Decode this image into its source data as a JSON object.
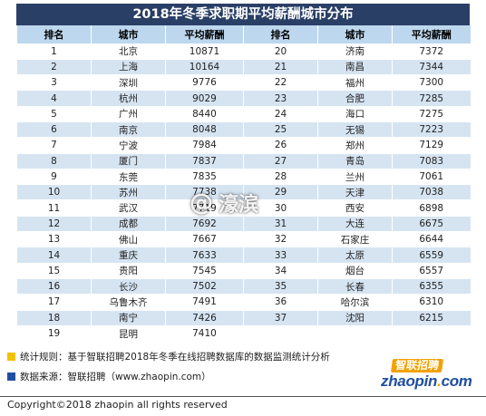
{
  "title": "2018年冬季求职期平均薪酬城市分布",
  "headers": [
    "排名",
    "城市",
    "平均薪酬",
    "排名",
    "城市",
    "平均薪酬"
  ],
  "left": [
    {
      "rank": "1",
      "city": "北京",
      "salary": "10871"
    },
    {
      "rank": "2",
      "city": "上海",
      "salary": "10164"
    },
    {
      "rank": "3",
      "city": "深圳",
      "salary": "9776"
    },
    {
      "rank": "4",
      "city": "杭州",
      "salary": "9029"
    },
    {
      "rank": "5",
      "city": "广州",
      "salary": "8440"
    },
    {
      "rank": "6",
      "city": "南京",
      "salary": "8048"
    },
    {
      "rank": "7",
      "city": "宁波",
      "salary": "7984"
    },
    {
      "rank": "8",
      "city": "厦门",
      "salary": "7837"
    },
    {
      "rank": "9",
      "city": "东莞",
      "salary": "7835"
    },
    {
      "rank": "10",
      "city": "苏州",
      "salary": "7738"
    },
    {
      "rank": "11",
      "city": "武汉",
      "salary": "7719"
    },
    {
      "rank": "12",
      "city": "成都",
      "salary": "7692"
    },
    {
      "rank": "13",
      "city": "佛山",
      "salary": "7667"
    },
    {
      "rank": "14",
      "city": "重庆",
      "salary": "7633"
    },
    {
      "rank": "15",
      "city": "贵阳",
      "salary": "7545"
    },
    {
      "rank": "16",
      "city": "长沙",
      "salary": "7502"
    },
    {
      "rank": "17",
      "city": "乌鲁木齐",
      "salary": "7491"
    },
    {
      "rank": "18",
      "city": "南宁",
      "salary": "7426"
    },
    {
      "rank": "19",
      "city": "昆明",
      "salary": "7410"
    }
  ],
  "right": [
    {
      "rank": "20",
      "city": "济南",
      "salary": "7372"
    },
    {
      "rank": "21",
      "city": "南昌",
      "salary": "7344"
    },
    {
      "rank": "22",
      "city": "福州",
      "salary": "7300"
    },
    {
      "rank": "23",
      "city": "合肥",
      "salary": "7285"
    },
    {
      "rank": "24",
      "city": "海口",
      "salary": "7275"
    },
    {
      "rank": "25",
      "city": "无锡",
      "salary": "7223"
    },
    {
      "rank": "26",
      "city": "郑州",
      "salary": "7129"
    },
    {
      "rank": "27",
      "city": "青岛",
      "salary": "7083"
    },
    {
      "rank": "28",
      "city": "兰州",
      "salary": "7061"
    },
    {
      "rank": "29",
      "city": "天津",
      "salary": "7038"
    },
    {
      "rank": "30",
      "city": "西安",
      "salary": "6898"
    },
    {
      "rank": "31",
      "city": "大连",
      "salary": "6675"
    },
    {
      "rank": "32",
      "city": "石家庄",
      "salary": "6644"
    },
    {
      "rank": "33",
      "city": "太原",
      "salary": "6559"
    },
    {
      "rank": "34",
      "city": "烟台",
      "salary": "6557"
    },
    {
      "rank": "35",
      "city": "长春",
      "salary": "6355"
    },
    {
      "rank": "36",
      "city": "哈尔滨",
      "salary": "6310"
    },
    {
      "rank": "37",
      "city": "沈阳",
      "salary": "6215"
    }
  ],
  "watermark": {
    "at": "@",
    "name": "濠滨"
  },
  "notes": {
    "rule": "统计规则：基于智联招聘2018年冬季在线招聘数据库的数据监测统计分析",
    "source": "数据来源：智联招聘（www.zhaopin.com）"
  },
  "logo": {
    "cn": "智联招聘",
    "en_main": "zhaopin",
    "en_dot": ".",
    "en_tld": "com"
  },
  "copyright": "Copyright©2018 zhaopin all rights reserved",
  "colors": {
    "title_bg": "#2a3f66",
    "header_bg": "#bdd7ee",
    "stripe": "#d6e4f2",
    "note_yellow": "#f2c200",
    "note_blue": "#1f4fa0"
  }
}
